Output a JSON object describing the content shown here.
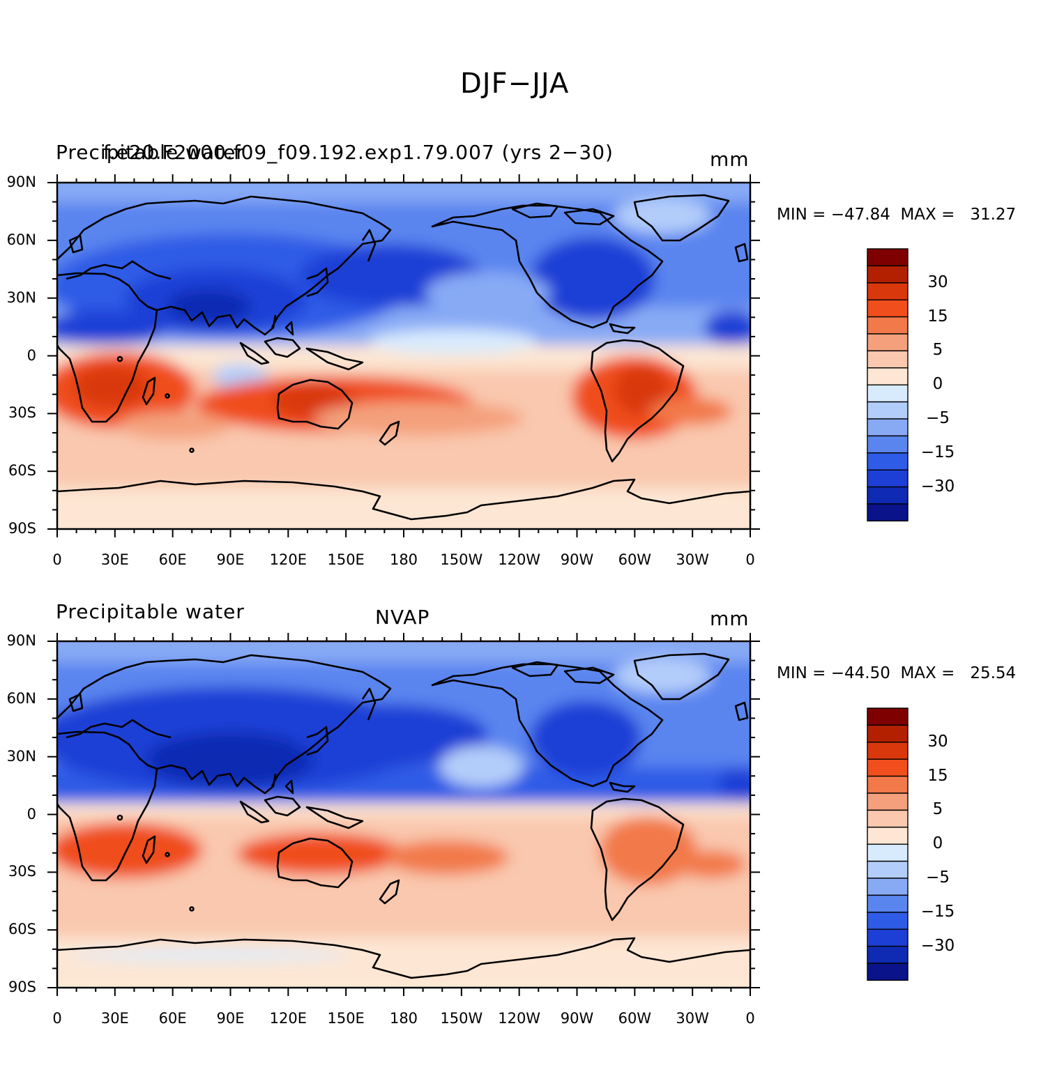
{
  "main_title": "DJF−JJA",
  "colorbar_levels": [
    "30",
    "15",
    "5",
    "0",
    "−5",
    "−15",
    "−30"
  ],
  "colorbar_colors": [
    "#7f0000",
    "#b32000",
    "#d9380d",
    "#f04e1c",
    "#f2794a",
    "#f4a07c",
    "#f9c8ae",
    "#fde6d3",
    "#d8ebfd",
    "#b3cdfa",
    "#88aaf5",
    "#5a85ef",
    "#2f5ce6",
    "#1d3fd6",
    "#0f2bb3",
    "#0a138a"
  ],
  "lat_ticks": [
    "90N",
    "60N",
    "30N",
    "0",
    "30S",
    "60S",
    "90S"
  ],
  "lon_ticks": [
    "0",
    "30E",
    "60E",
    "90E",
    "120E",
    "150E",
    "180",
    "150W",
    "120W",
    "90W",
    "60W",
    "30W",
    "0"
  ],
  "panels": [
    {
      "left_title": "Precipitable water",
      "center_title": "f.e20.F2000.f09_f09.192.exp1.79.007 (yrs 2−30)",
      "units": "mm",
      "stats": "MIN = −47.84  MAX =   31.27",
      "min": -47.84,
      "max": 31.27
    },
    {
      "left_title": "Precipitable water",
      "center_title": "NVAP",
      "units": "mm",
      "stats": "MIN = −44.50  MAX =   25.54",
      "min": -44.5,
      "max": 25.54
    }
  ]
}
